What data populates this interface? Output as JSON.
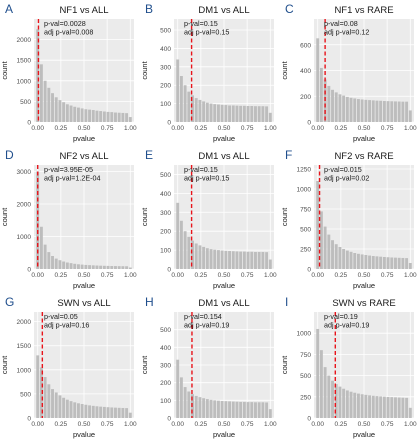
{
  "figure": {
    "bar_color": "#bdbdbd",
    "panel_background": "#ebebeb",
    "gridline_color": "#ffffff",
    "threshold_line_color": "#e8141b",
    "panel_letter_color": "#1f4e8c"
  },
  "chart_data": [
    {
      "type": "bar",
      "panel_letter": "A",
      "title": "NF1 vs ALL",
      "xlabel": "pvalue",
      "ylabel": "count",
      "annotations": [
        "p-val=0.0028",
        "adj p-val=0.008"
      ],
      "threshold_x": 0.008,
      "xlim": [
        -0.04,
        1.04
      ],
      "ylim": [
        0,
        2500
      ],
      "yticks": [
        0,
        500,
        1000,
        1500,
        2000
      ],
      "xticks": [
        "0.00",
        "0.25",
        "0.50",
        "0.75",
        "1.00"
      ],
      "bin_width": 0.04,
      "bin_centers": [
        0,
        0.04,
        0.08,
        0.12,
        0.16,
        0.2,
        0.24,
        0.28,
        0.32,
        0.36,
        0.4,
        0.44,
        0.48,
        0.52,
        0.56,
        0.6,
        0.64,
        0.68,
        0.72,
        0.76,
        0.8,
        0.84,
        0.88,
        0.92,
        0.96,
        1
      ],
      "values": [
        2250,
        1400,
        1000,
        830,
        700,
        600,
        530,
        480,
        430,
        400,
        370,
        350,
        330,
        310,
        300,
        290,
        275,
        265,
        255,
        245,
        240,
        230,
        225,
        220,
        215,
        120
      ]
    },
    {
      "type": "bar",
      "panel_letter": "B",
      "title": "DM1 vs ALL",
      "xlabel": "pvalue",
      "ylabel": "count",
      "annotations": [
        "p-val=0.15",
        "adj p-val=0.15"
      ],
      "threshold_x": 0.15,
      "xlim": [
        -0.04,
        1.04
      ],
      "ylim": [
        0,
        560
      ],
      "yticks": [
        0,
        100,
        200,
        300,
        400,
        500
      ],
      "xticks": [
        "0.00",
        "0.25",
        "0.50",
        "0.75",
        "1.00"
      ],
      "bin_width": 0.04,
      "bin_centers": [
        0,
        0.04,
        0.08,
        0.12,
        0.16,
        0.2,
        0.24,
        0.28,
        0.32,
        0.36,
        0.4,
        0.44,
        0.48,
        0.52,
        0.56,
        0.6,
        0.64,
        0.68,
        0.72,
        0.76,
        0.8,
        0.84,
        0.88,
        0.92,
        0.96,
        1
      ],
      "values": [
        340,
        250,
        200,
        165,
        145,
        130,
        120,
        112,
        105,
        100,
        97,
        95,
        93,
        92,
        90,
        90,
        89,
        88,
        88,
        87,
        87,
        86,
        86,
        86,
        85,
        50
      ]
    },
    {
      "type": "bar",
      "panel_letter": "C",
      "title": "NF1 vs RARE",
      "xlabel": "pvalue",
      "ylabel": "count",
      "annotations": [
        "p-val=0.08",
        "adj p-val=0.12"
      ],
      "threshold_x": 0.08,
      "xlim": [
        -0.04,
        1.04
      ],
      "ylim": [
        0,
        800
      ],
      "yticks": [
        0,
        200,
        400,
        600
      ],
      "xticks": [
        "0.00",
        "0.25",
        "0.50",
        "0.75",
        "1.00"
      ],
      "bin_width": 0.04,
      "bin_centers": [
        0,
        0.04,
        0.08,
        0.12,
        0.16,
        0.2,
        0.24,
        0.28,
        0.32,
        0.36,
        0.4,
        0.44,
        0.48,
        0.52,
        0.56,
        0.6,
        0.64,
        0.68,
        0.72,
        0.76,
        0.8,
        0.84,
        0.88,
        0.92,
        0.96,
        1
      ],
      "values": [
        650,
        420,
        330,
        280,
        250,
        230,
        215,
        205,
        195,
        188,
        183,
        178,
        175,
        172,
        170,
        168,
        166,
        165,
        163,
        162,
        161,
        160,
        159,
        158,
        158,
        90
      ]
    },
    {
      "type": "bar",
      "panel_letter": "D",
      "title": "NF2 vs ALL",
      "xlabel": "pvalue",
      "ylabel": "count",
      "annotations": [
        "p-val=3.95E-05",
        "adj p-val=1.2E-04"
      ],
      "threshold_x": 0.0001,
      "xlim": [
        -0.04,
        1.04
      ],
      "ylim": [
        0,
        3200
      ],
      "yticks": [
        0,
        1000,
        2000,
        3000
      ],
      "xticks": [
        "0.00",
        "0.25",
        "0.50",
        "0.75",
        "1.00"
      ],
      "bin_width": 0.04,
      "bin_centers": [
        0,
        0.04,
        0.08,
        0.12,
        0.16,
        0.2,
        0.24,
        0.28,
        0.32,
        0.36,
        0.4,
        0.44,
        0.48,
        0.52,
        0.56,
        0.6,
        0.64,
        0.68,
        0.72,
        0.76,
        0.8,
        0.84,
        0.88,
        0.92,
        0.96,
        1
      ],
      "values": [
        3000,
        1300,
        750,
        520,
        400,
        320,
        270,
        230,
        200,
        180,
        160,
        145,
        135,
        125,
        118,
        112,
        107,
        102,
        98,
        95,
        92,
        90,
        88,
        86,
        84,
        45
      ]
    },
    {
      "type": "bar",
      "panel_letter": "E",
      "title": "DM1 vs ALL",
      "xlabel": "pvalue",
      "ylabel": "count",
      "annotations": [
        "p-val=0.15",
        "adj p-val=0.15"
      ],
      "threshold_x": 0.15,
      "xlim": [
        -0.04,
        1.04
      ],
      "ylim": [
        0,
        550
      ],
      "yticks": [
        0,
        100,
        200,
        300,
        400,
        500
      ],
      "xticks": [
        "0.00",
        "0.25",
        "0.50",
        "0.75",
        "1.00"
      ],
      "bin_width": 0.04,
      "bin_centers": [
        0,
        0.04,
        0.08,
        0.12,
        0.16,
        0.2,
        0.24,
        0.28,
        0.32,
        0.36,
        0.4,
        0.44,
        0.48,
        0.52,
        0.56,
        0.6,
        0.64,
        0.68,
        0.72,
        0.76,
        0.8,
        0.84,
        0.88,
        0.92,
        0.96,
        1
      ],
      "values": [
        350,
        255,
        200,
        170,
        150,
        135,
        125,
        117,
        110,
        105,
        102,
        100,
        98,
        96,
        95,
        94,
        93,
        92,
        92,
        91,
        91,
        90,
        90,
        90,
        89,
        50
      ]
    },
    {
      "type": "bar",
      "panel_letter": "F",
      "title": "NF2 vs RARE",
      "xlabel": "pvalue",
      "ylabel": "count",
      "annotations": [
        "p-val=0.015",
        "adj p-val=0.02"
      ],
      "threshold_x": 0.02,
      "xlim": [
        -0.04,
        1.04
      ],
      "ylim": [
        0,
        1300
      ],
      "yticks": [
        0,
        250,
        500,
        750,
        1000,
        1250
      ],
      "xticks": [
        "0.00",
        "0.25",
        "0.50",
        "0.75",
        "1.00"
      ],
      "bin_width": 0.04,
      "bin_centers": [
        0,
        0.04,
        0.08,
        0.12,
        0.16,
        0.2,
        0.24,
        0.28,
        0.32,
        0.36,
        0.4,
        0.44,
        0.48,
        0.52,
        0.56,
        0.6,
        0.64,
        0.68,
        0.72,
        0.76,
        0.8,
        0.84,
        0.88,
        0.92,
        0.96,
        1
      ],
      "values": [
        1100,
        720,
        530,
        430,
        360,
        310,
        275,
        250,
        230,
        215,
        200,
        190,
        182,
        175,
        168,
        162,
        158,
        154,
        150,
        147,
        144,
        142,
        140,
        138,
        136,
        75
      ]
    },
    {
      "type": "bar",
      "panel_letter": "G",
      "title": "SWN vs ALL",
      "xlabel": "pvalue",
      "ylabel": "count",
      "annotations": [
        "p-val=0.05",
        "adj p-val=0.16"
      ],
      "threshold_x": 0.05,
      "xlim": [
        -0.04,
        1.04
      ],
      "ylim": [
        0,
        2200
      ],
      "yticks": [
        0,
        500,
        1000,
        1500,
        2000
      ],
      "xticks": [
        "0.00",
        "0.25",
        "0.50",
        "0.75",
        "1.00"
      ],
      "bin_width": 0.04,
      "bin_centers": [
        0,
        0.04,
        0.08,
        0.12,
        0.16,
        0.2,
        0.24,
        0.28,
        0.32,
        0.36,
        0.4,
        0.44,
        0.48,
        0.52,
        0.56,
        0.6,
        0.64,
        0.68,
        0.72,
        0.76,
        0.8,
        0.84,
        0.88,
        0.92,
        0.96,
        1
      ],
      "values": [
        1300,
        1050,
        850,
        700,
        600,
        530,
        470,
        420,
        380,
        350,
        325,
        305,
        290,
        275,
        262,
        252,
        243,
        236,
        230,
        224,
        219,
        215,
        211,
        208,
        205,
        110
      ]
    },
    {
      "type": "bar",
      "panel_letter": "H",
      "title": "DM1 vs ALL",
      "xlabel": "pvalue",
      "ylabel": "count",
      "annotations": [
        "p-val=0.154",
        "adj p-val=0.19"
      ],
      "threshold_x": 0.154,
      "xlim": [
        -0.04,
        1.04
      ],
      "ylim": [
        0,
        600
      ],
      "yticks": [
        0,
        100,
        200,
        300,
        400,
        500
      ],
      "xticks": [
        "0.00",
        "0.25",
        "0.50",
        "0.75",
        "1.00"
      ],
      "bin_width": 0.04,
      "bin_centers": [
        0,
        0.04,
        0.08,
        0.12,
        0.16,
        0.2,
        0.24,
        0.28,
        0.32,
        0.36,
        0.4,
        0.44,
        0.48,
        0.52,
        0.56,
        0.6,
        0.64,
        0.68,
        0.72,
        0.76,
        0.8,
        0.84,
        0.88,
        0.92,
        0.96,
        1
      ],
      "values": [
        330,
        230,
        175,
        150,
        135,
        125,
        118,
        112,
        107,
        103,
        100,
        98,
        96,
        95,
        94,
        93,
        92,
        91,
        91,
        90,
        90,
        89,
        89,
        89,
        88,
        50
      ]
    },
    {
      "type": "bar",
      "panel_letter": "I",
      "title": "SWN vs RARE",
      "xlabel": "pvalue",
      "ylabel": "count",
      "annotations": [
        "p-val=0.19",
        "adj p-val=0.19"
      ],
      "threshold_x": 0.19,
      "xlim": [
        -0.04,
        1.04
      ],
      "ylim": [
        0,
        1250
      ],
      "yticks": [
        0,
        250,
        500,
        750,
        1000
      ],
      "xticks": [
        "0.00",
        "0.25",
        "0.50",
        "0.75",
        "1.00"
      ],
      "bin_width": 0.04,
      "bin_centers": [
        0,
        0.04,
        0.08,
        0.12,
        0.16,
        0.2,
        0.24,
        0.28,
        0.32,
        0.36,
        0.4,
        0.44,
        0.48,
        0.52,
        0.56,
        0.6,
        0.64,
        0.68,
        0.72,
        0.76,
        0.8,
        0.84,
        0.88,
        0.92,
        0.96,
        1
      ],
      "values": [
        1050,
        800,
        600,
        500,
        440,
        400,
        370,
        345,
        325,
        310,
        298,
        288,
        280,
        273,
        267,
        262,
        258,
        254,
        251,
        248,
        246,
        244,
        242,
        240,
        238,
        120
      ]
    }
  ]
}
